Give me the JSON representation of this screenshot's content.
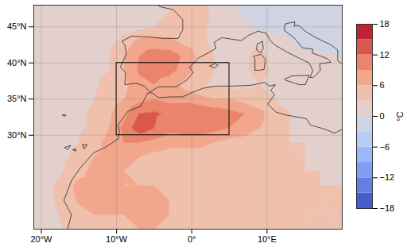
{
  "chart_data": {
    "type": "map",
    "grid": true,
    "xlim": [
      -21,
      20
    ],
    "ylim": [
      17,
      48
    ],
    "xticks": [
      {
        "value": -20,
        "label": "20°W"
      },
      {
        "value": -10,
        "label": "10°W"
      },
      {
        "value": 0,
        "label": "0°"
      },
      {
        "value": 10,
        "label": "10°E"
      }
    ],
    "yticks": [
      {
        "value": 30,
        "label": "30°N"
      },
      {
        "value": 35,
        "label": "35°N"
      },
      {
        "value": 40,
        "label": "40°N"
      },
      {
        "value": 45,
        "label": "45°N"
      }
    ],
    "colorbar": {
      "label": "°C",
      "range": [
        -18,
        18
      ],
      "ticks": [
        -18,
        -12,
        -6,
        0,
        6,
        12,
        18
      ],
      "levels": [
        -18,
        -15,
        -12,
        -9,
        -6,
        -3,
        0,
        3,
        6,
        9,
        12,
        15,
        18
      ]
    },
    "box": {
      "lon": [
        -10,
        5
      ],
      "lat": [
        30,
        40
      ]
    },
    "field": {
      "lons": [
        -21,
        -19,
        -17,
        -15,
        -13,
        -11,
        -9,
        -7,
        -5,
        -3,
        -1,
        1,
        3,
        5,
        7,
        9,
        11,
        13,
        15,
        17,
        19,
        21
      ],
      "lats": [
        49,
        47,
        45,
        43,
        41,
        39,
        37,
        35,
        33,
        31,
        29,
        27,
        25,
        23,
        21,
        19,
        17
      ],
      "values": [
        [
          1,
          1,
          1,
          1,
          1,
          1.5,
          1.5,
          2,
          2,
          3,
          4,
          3,
          2,
          1,
          -1,
          -2,
          -2,
          -2,
          -2,
          -2,
          -2,
          -2
        ],
        [
          1,
          1,
          1,
          1,
          1,
          1.5,
          2,
          2,
          2.5,
          3,
          4.5,
          4,
          2.5,
          1,
          -0.5,
          -1.5,
          -2,
          -2,
          -1.5,
          -1,
          -1,
          -1
        ],
        [
          1,
          1,
          1,
          1,
          1,
          1.5,
          2,
          2,
          3,
          4,
          4,
          3.5,
          2.5,
          1,
          0.5,
          -0.5,
          -1,
          -1,
          -1.5,
          -1.5,
          -1,
          -1
        ],
        [
          1,
          1,
          1,
          1.5,
          1.5,
          2,
          4,
          7,
          7.5,
          7,
          5,
          3.5,
          2.5,
          2,
          1.5,
          2,
          1,
          0.5,
          -1,
          -1,
          -1,
          -1
        ],
        [
          1,
          1,
          1.5,
          1.5,
          2,
          3,
          6,
          9,
          10.5,
          10.5,
          8.5,
          5,
          3,
          2,
          2.5,
          4,
          2,
          1,
          1,
          0.5,
          0,
          0
        ],
        [
          1,
          1.5,
          1.5,
          2,
          2,
          3,
          6,
          9.5,
          10.5,
          10,
          8,
          4.5,
          3,
          2,
          2.5,
          4,
          2.5,
          1.5,
          1,
          1,
          0.5,
          0.5
        ],
        [
          1.5,
          1.5,
          2,
          2,
          2.5,
          4,
          5,
          8,
          9,
          7.5,
          5,
          3.5,
          2.5,
          2,
          2.5,
          3,
          2,
          1.5,
          1.5,
          1,
          1,
          1
        ],
        [
          1.5,
          1.5,
          2,
          2,
          3,
          4.5,
          6,
          8,
          9,
          8,
          8,
          7,
          6,
          6,
          5,
          4,
          3,
          2,
          1.5,
          1.5,
          1,
          1
        ],
        [
          2,
          2,
          2,
          2.5,
          3.5,
          5.5,
          8,
          12,
          12.5,
          11.5,
          12,
          12,
          11,
          10,
          9,
          7,
          4,
          3,
          2,
          2,
          2,
          2
        ],
        [
          2,
          2,
          2,
          2.5,
          3.5,
          6,
          10,
          14,
          12,
          10,
          11,
          11,
          10,
          9,
          8,
          6,
          4,
          3,
          2.5,
          2,
          2,
          2
        ],
        [
          2,
          2,
          2,
          3,
          5,
          7,
          9,
          9,
          8,
          7,
          7,
          7,
          6,
          5,
          4.5,
          4,
          3.5,
          3,
          3,
          2.5,
          2,
          2
        ],
        [
          2,
          2,
          2.5,
          4,
          6,
          7,
          7,
          6,
          5,
          4.5,
          4.5,
          4.5,
          4.5,
          4,
          4,
          4,
          3.5,
          3,
          3,
          2.5,
          2,
          2
        ],
        [
          2,
          2,
          3,
          5,
          7,
          7.5,
          6,
          5,
          5,
          4.5,
          4.5,
          4.5,
          4.5,
          4,
          4,
          4,
          4,
          3.5,
          3,
          3,
          2.5,
          2.5
        ],
        [
          2,
          2.5,
          4.5,
          7,
          7.5,
          7,
          6,
          6,
          6,
          5,
          4.5,
          4,
          4,
          4,
          4,
          4,
          4,
          4,
          3.5,
          3,
          3,
          3
        ],
        [
          2,
          2.5,
          4,
          6.5,
          7,
          7,
          6.5,
          7,
          7,
          6,
          5,
          4.5,
          4,
          4,
          4,
          4,
          4,
          4,
          3.5,
          3,
          3,
          3
        ],
        [
          2,
          2,
          3.5,
          5,
          6,
          6,
          6,
          6.5,
          6.5,
          6,
          5,
          4.5,
          4,
          4,
          4,
          4,
          3.5,
          3.5,
          3,
          3,
          3,
          3
        ],
        [
          2,
          2,
          3,
          4.5,
          5,
          5.5,
          5.5,
          6,
          6,
          5.5,
          5,
          4.5,
          4,
          4,
          4,
          4,
          3.5,
          3.5,
          3,
          3,
          3,
          3
        ]
      ]
    },
    "coastlines": [
      [
        [
          -1.6,
          48.6
        ],
        [
          -4.7,
          48.4
        ],
        [
          -4.3,
          47.8
        ],
        [
          -2.5,
          47.4
        ],
        [
          -2.2,
          47.1
        ],
        [
          -1.2,
          46.0
        ],
        [
          -1.2,
          44.6
        ],
        [
          -1.8,
          43.4
        ],
        [
          -3.8,
          43.4
        ],
        [
          -5.7,
          43.6
        ],
        [
          -8.0,
          43.7
        ],
        [
          -9.3,
          43.0
        ],
        [
          -8.9,
          42.5
        ],
        [
          -8.7,
          41.2
        ],
        [
          -9.5,
          39.4
        ],
        [
          -8.8,
          38.7
        ],
        [
          -8.9,
          37.0
        ],
        [
          -7.4,
          37.2
        ],
        [
          -6.3,
          36.8
        ],
        [
          -5.6,
          36.0
        ],
        [
          -5.4,
          36.1
        ],
        [
          -4.4,
          36.7
        ],
        [
          -2.1,
          36.7
        ],
        [
          -0.7,
          37.6
        ],
        [
          0.2,
          38.7
        ],
        [
          -0.3,
          39.4
        ],
        [
          0.9,
          40.7
        ],
        [
          2.2,
          41.4
        ],
        [
          3.2,
          42.0
        ],
        [
          3.0,
          42.9
        ],
        [
          4.0,
          43.5
        ],
        [
          5.3,
          43.3
        ],
        [
          6.6,
          43.1
        ],
        [
          7.5,
          43.8
        ],
        [
          8.8,
          44.4
        ],
        [
          9.9,
          44.1
        ],
        [
          10.5,
          43.0
        ],
        [
          11.2,
          42.4
        ],
        [
          12.5,
          41.6
        ],
        [
          14.0,
          40.8
        ],
        [
          15.6,
          40.0
        ],
        [
          16.1,
          38.9
        ],
        [
          15.7,
          38.0
        ],
        [
          16.1,
          38.0
        ],
        [
          16.6,
          38.4
        ],
        [
          17.1,
          39.0
        ],
        [
          17.0,
          39.9
        ],
        [
          18.5,
          40.1
        ],
        [
          18.0,
          40.6
        ],
        [
          16.0,
          41.4
        ],
        [
          16.1,
          41.9
        ],
        [
          14.7,
          42.1
        ],
        [
          13.6,
          43.5
        ],
        [
          12.3,
          44.5
        ],
        [
          12.4,
          45.4
        ],
        [
          13.7,
          45.7
        ],
        [
          13.6,
          45.1
        ],
        [
          14.2,
          45.2
        ],
        [
          15.2,
          44.3
        ],
        [
          16.5,
          43.5
        ],
        [
          18.5,
          42.5
        ],
        [
          19.4,
          41.8
        ],
        [
          19.4,
          40.3
        ],
        [
          20.5,
          39.5
        ]
      ],
      [
        [
          -16.5,
          17.0
        ],
        [
          -16.0,
          19.0
        ],
        [
          -16.5,
          20.0
        ],
        [
          -17.0,
          21.0
        ],
        [
          -16.0,
          23.7
        ],
        [
          -14.8,
          25.5
        ],
        [
          -13.0,
          27.6
        ],
        [
          -11.5,
          28.3
        ],
        [
          -9.8,
          29.5
        ],
        [
          -9.6,
          30.5
        ],
        [
          -9.8,
          31.4
        ],
        [
          -8.5,
          33.3
        ],
        [
          -6.8,
          34.0
        ],
        [
          -6.0,
          35.5
        ],
        [
          -5.9,
          35.8
        ],
        [
          -5.3,
          35.9
        ],
        [
          -4.4,
          35.2
        ],
        [
          -2.9,
          35.3
        ],
        [
          -1.2,
          35.3
        ],
        [
          0.0,
          35.9
        ],
        [
          1.5,
          36.5
        ],
        [
          3.2,
          36.8
        ],
        [
          5.0,
          36.8
        ],
        [
          7.8,
          36.9
        ],
        [
          9.7,
          37.3
        ],
        [
          10.3,
          36.8
        ],
        [
          11.1,
          37.0
        ],
        [
          10.5,
          36.2
        ],
        [
          11.0,
          35.6
        ],
        [
          10.1,
          34.3
        ],
        [
          11.2,
          33.2
        ],
        [
          12.5,
          32.8
        ],
        [
          15.2,
          32.3
        ],
        [
          15.8,
          31.4
        ],
        [
          17.5,
          30.9
        ],
        [
          19.0,
          30.3
        ],
        [
          20.0,
          30.8
        ],
        [
          20.1,
          32.0
        ],
        [
          21.0,
          32.7
        ]
      ],
      [
        [
          8.4,
          39.0
        ],
        [
          8.4,
          40.6
        ],
        [
          8.2,
          40.9
        ],
        [
          9.2,
          41.2
        ],
        [
          9.8,
          40.5
        ],
        [
          9.6,
          39.1
        ],
        [
          9.0,
          39.0
        ],
        [
          8.4,
          39.0
        ]
      ],
      [
        [
          8.6,
          41.9
        ],
        [
          8.7,
          42.6
        ],
        [
          9.4,
          43.0
        ],
        [
          9.5,
          42.0
        ],
        [
          9.2,
          41.4
        ],
        [
          8.8,
          41.6
        ],
        [
          8.6,
          41.9
        ]
      ],
      [
        [
          12.4,
          37.8
        ],
        [
          13.3,
          38.2
        ],
        [
          15.6,
          38.3
        ],
        [
          15.1,
          37.0
        ],
        [
          14.3,
          37.0
        ],
        [
          12.5,
          37.6
        ],
        [
          12.4,
          37.8
        ]
      ],
      [
        [
          2.4,
          39.6
        ],
        [
          3.1,
          39.9
        ],
        [
          3.5,
          39.7
        ],
        [
          3.0,
          39.3
        ],
        [
          2.4,
          39.6
        ]
      ],
      [
        [
          -16.9,
          28.3
        ],
        [
          -16.1,
          28.6
        ],
        [
          -16.5,
          28.0
        ],
        [
          -16.9,
          28.3
        ]
      ],
      [
        [
          -15.8,
          28.0
        ],
        [
          -15.4,
          28.1
        ],
        [
          -15.4,
          27.8
        ],
        [
          -15.8,
          28.0
        ]
      ],
      [
        [
          -14.5,
          28.7
        ],
        [
          -13.9,
          28.7
        ],
        [
          -14.3,
          28.1
        ],
        [
          -14.5,
          28.7
        ]
      ],
      [
        [
          -17.2,
          32.8
        ],
        [
          -16.7,
          32.8
        ],
        [
          -16.9,
          32.6
        ],
        [
          -17.2,
          32.8
        ]
      ]
    ]
  }
}
